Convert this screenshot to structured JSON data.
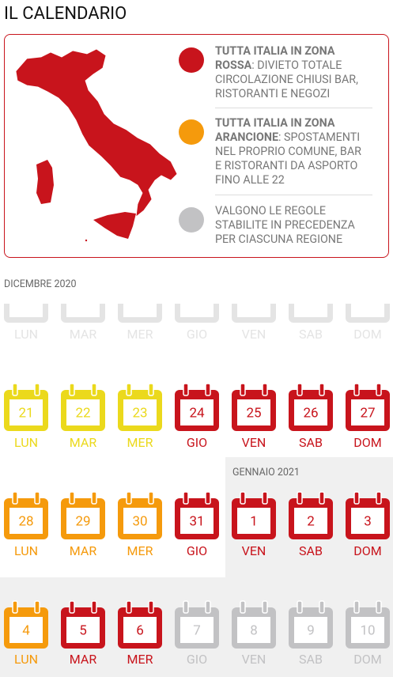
{
  "title": "IL CALENDARIO",
  "legend": [
    {
      "color": "#c8141c",
      "bold": "TUTTA ITALIA IN ZONA ROSSA",
      "text": ": DIVIETO TOTALE CIRCOLAZIONE CHIUSI BAR, RISTORANTI E NEGOZI"
    },
    {
      "color": "#f59a0c",
      "bold": "TUTTA ITALIA IN ZONA ARANCIONE",
      "text": ": SPOSTAMENTI NEL PROPRIO COMUNE, BAR E RISTORANTI DA ASPORTO FINO ALLE 22"
    },
    {
      "color": "#c2c2c4",
      "text": "VALGONO LE REGOLE STABILITE IN PRECEDENZA PER CIASCUNA REGIONE"
    }
  ],
  "months": [
    "DICEMBRE 2020",
    "GENNAIO 2021"
  ],
  "weeks": [
    {
      "days": [
        {
          "label": "LUN",
          "color": "#e4e4e4"
        },
        {
          "label": "MAR",
          "color": "#e4e4e4"
        },
        {
          "label": "MER",
          "color": "#e4e4e4"
        },
        {
          "label": "GIO",
          "color": "#e4e4e4"
        },
        {
          "label": "VEN",
          "color": "#e4e4e4"
        },
        {
          "label": "SAB",
          "color": "#e4e4e4"
        },
        {
          "label": "DOM",
          "color": "#e4e4e4"
        }
      ]
    },
    {
      "days": [
        {
          "number": 21,
          "label": "LUN",
          "color": "#ebd91c"
        },
        {
          "number": 22,
          "label": "MAR",
          "color": "#ebd91c"
        },
        {
          "number": 23,
          "label": "MER",
          "color": "#ebd91c"
        },
        {
          "number": 24,
          "label": "GIO",
          "color": "#c8141c"
        },
        {
          "number": 25,
          "label": "VEN",
          "color": "#c8141c"
        },
        {
          "number": 26,
          "label": "SAB",
          "color": "#c8141c"
        },
        {
          "number": 27,
          "label": "DOM",
          "color": "#c8141c"
        }
      ]
    },
    {
      "days": [
        {
          "number": 28,
          "label": "LUN",
          "color": "#f59a0c"
        },
        {
          "number": 29,
          "label": "MAR",
          "color": "#f59a0c"
        },
        {
          "number": 30,
          "label": "MER",
          "color": "#f59a0c"
        },
        {
          "number": 31,
          "label": "GIO",
          "color": "#c8141c"
        },
        {
          "number": 1,
          "label": "VEN",
          "color": "#c8141c"
        },
        {
          "number": 2,
          "label": "SAB",
          "color": "#c8141c"
        },
        {
          "number": 3,
          "label": "DOM",
          "color": "#c8141c"
        }
      ]
    },
    {
      "days": [
        {
          "number": 4,
          "label": "LUN",
          "color": "#f59a0c"
        },
        {
          "number": 5,
          "label": "MAR",
          "color": "#c8141c"
        },
        {
          "number": 6,
          "label": "MER",
          "color": "#c8141c"
        },
        {
          "number": 7,
          "label": "GIO",
          "color": "#c2c2c4"
        },
        {
          "number": 8,
          "label": "VEN",
          "color": "#c2c2c4"
        },
        {
          "number": 9,
          "label": "SAB",
          "color": "#c2c2c4"
        },
        {
          "number": 10,
          "label": "DOM",
          "color": "#c2c2c4"
        }
      ]
    }
  ]
}
